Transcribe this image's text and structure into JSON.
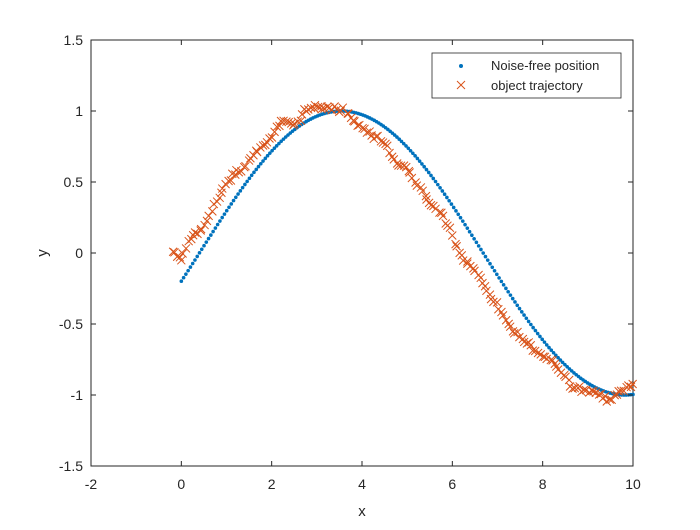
{
  "chart_data": {
    "type": "scatter",
    "title": "",
    "xlabel": "x",
    "ylabel": "y",
    "xlim": [
      -2,
      10
    ],
    "ylim": [
      -1.5,
      1.5
    ],
    "xticks": [
      "-2",
      "0",
      "2",
      "4",
      "6",
      "8",
      "10"
    ],
    "yticks": [
      "-1.5",
      "-1",
      "-0.5",
      "0",
      "0.5",
      "1",
      "1.5"
    ],
    "grid": false,
    "legend_position": "top-right",
    "colors": {
      "noise_free": "#0072BD",
      "trajectory": "#D95319",
      "axes": "#262626"
    },
    "series": [
      {
        "name": "Noise-free position",
        "marker": "dot",
        "function": "sin(x/2 - 0.2)",
        "x_range": [
          0,
          10
        ],
        "n_points": 200
      },
      {
        "name": "object trajectory",
        "marker": "x",
        "x_range": [
          -0.2,
          10
        ],
        "n_points": 200,
        "approx_points": [
          [
            -0.15,
            0.0
          ],
          [
            0.0,
            -0.05
          ],
          [
            0.2,
            0.1
          ],
          [
            0.5,
            0.18
          ],
          [
            0.8,
            0.38
          ],
          [
            1.0,
            0.5
          ],
          [
            1.3,
            0.58
          ],
          [
            1.5,
            0.65
          ],
          [
            1.8,
            0.76
          ],
          [
            2.0,
            0.82
          ],
          [
            2.2,
            0.93
          ],
          [
            2.5,
            0.9
          ],
          [
            2.8,
            1.02
          ],
          [
            3.0,
            1.04
          ],
          [
            3.3,
            1.02
          ],
          [
            3.6,
            1.01
          ],
          [
            3.8,
            0.93
          ],
          [
            4.0,
            0.88
          ],
          [
            4.3,
            0.82
          ],
          [
            4.5,
            0.77
          ],
          [
            4.8,
            0.62
          ],
          [
            5.0,
            0.6
          ],
          [
            5.3,
            0.45
          ],
          [
            5.5,
            0.35
          ],
          [
            5.8,
            0.25
          ],
          [
            6.0,
            0.12
          ],
          [
            6.2,
            -0.02
          ],
          [
            6.5,
            -0.12
          ],
          [
            6.8,
            -0.28
          ],
          [
            7.0,
            -0.38
          ],
          [
            7.3,
            -0.52
          ],
          [
            7.5,
            -0.6
          ],
          [
            7.8,
            -0.68
          ],
          [
            8.0,
            -0.72
          ],
          [
            8.3,
            -0.78
          ],
          [
            8.5,
            -0.88
          ],
          [
            8.7,
            -0.96
          ],
          [
            9.0,
            -0.97
          ],
          [
            9.3,
            -1.0
          ],
          [
            9.5,
            -1.05
          ],
          [
            9.7,
            -0.98
          ],
          [
            10.0,
            -0.93
          ]
        ]
      }
    ]
  }
}
